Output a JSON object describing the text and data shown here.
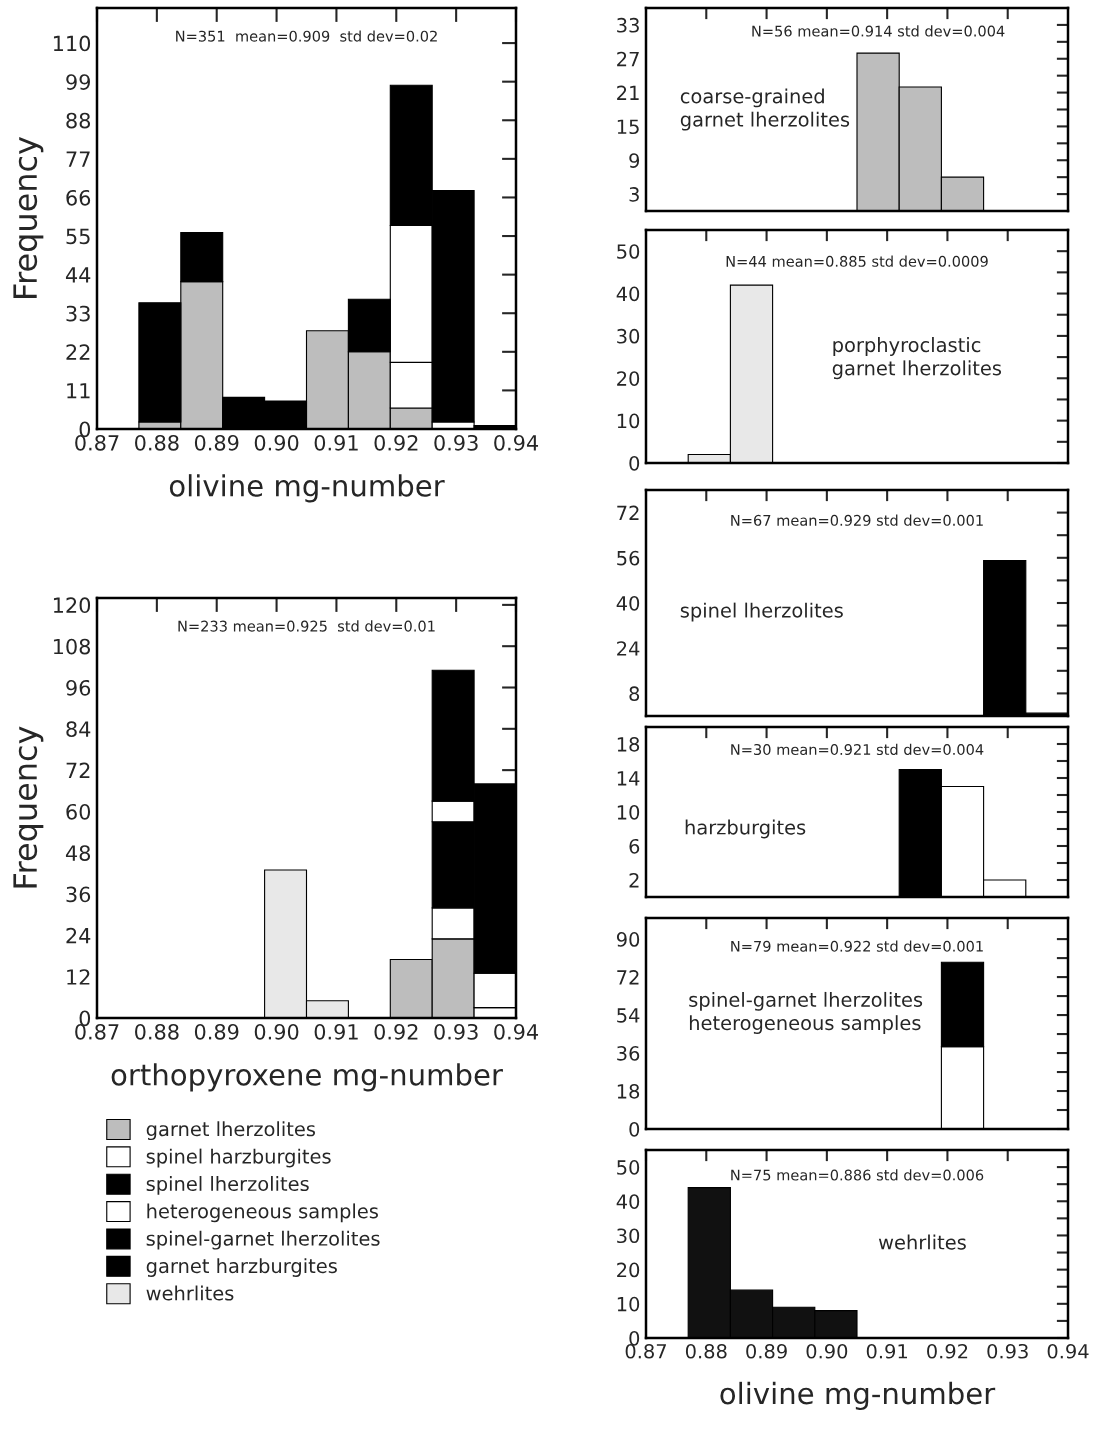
{
  "chart_data": [
    {
      "type": "bar",
      "xlabel": "olivine mg-number",
      "ylabel": "Frequency",
      "stacked": true,
      "x": [
        0.8805,
        0.8875,
        0.8945,
        0.9015,
        0.9085,
        0.9155,
        0.9225,
        0.9295,
        0.9365
      ],
      "series": [
        {
          "color": "#bdbdbd",
          "values": [
            2,
            42,
            null,
            null,
            28,
            22,
            6,
            null,
            null
          ]
        },
        {
          "color": "#ffffff",
          "values": [
            null,
            null,
            null,
            null,
            null,
            null,
            13,
            2,
            null
          ]
        },
        {
          "color": "#ffffff",
          "values": [
            null,
            null,
            null,
            null,
            null,
            null,
            39,
            null,
            null
          ]
        },
        {
          "color": "#000000",
          "values": [
            null,
            null,
            null,
            null,
            null,
            null,
            null,
            66,
            1
          ]
        },
        {
          "color": "#000000",
          "values": [
            null,
            null,
            null,
            null,
            null,
            15,
            null,
            null,
            null
          ]
        },
        {
          "color": "#000000",
          "values": [
            null,
            null,
            null,
            null,
            null,
            null,
            40,
            null,
            null
          ]
        },
        {
          "color": "#000000",
          "values": [
            34,
            14,
            9,
            8,
            null,
            null,
            null,
            null,
            null
          ]
        }
      ],
      "xlim": [
        0.87,
        0.94
      ],
      "xticks": [
        0.87,
        0.88,
        0.89,
        {
          "value": 0.9,
          "label": "0.90"
        },
        0.91,
        0.92,
        0.93,
        0.94
      ],
      "ylim": [
        0,
        120
      ],
      "yticks": [
        0,
        11,
        22,
        33,
        44,
        55,
        66,
        77,
        88,
        99,
        110
      ],
      "annotations": [
        "N=351  mean=0.909  std dev=0.02"
      ]
    },
    {
      "type": "bar",
      "xlabel": "orthopyroxene mg-number",
      "ylabel": "Frequency",
      "stacked": true,
      "legend": "bottom",
      "x": [
        0.9015,
        0.9085,
        0.9225,
        0.9295,
        0.9365
      ],
      "series": [
        {
          "name": "garnet lherzolites",
          "color": "#bdbdbd",
          "values": [
            null,
            null,
            17,
            23,
            null
          ]
        },
        {
          "name": "spinel harzburgites",
          "color": "#ffffff",
          "values": [
            null,
            null,
            null,
            9,
            3
          ]
        },
        {
          "name": "spinel lherzolites",
          "color": "#000000",
          "values": [
            null,
            null,
            null,
            25,
            null
          ]
        },
        {
          "name": "heterogeneous samples",
          "color": "#ffffff",
          "values": [
            null,
            null,
            null,
            6,
            10
          ]
        },
        {
          "name": "spinel-garnet lherzolites",
          "color": "#000000",
          "values": [
            null,
            null,
            null,
            38,
            55
          ]
        },
        {
          "name": "garnet harzburgites",
          "color": "#000000",
          "values": [
            null,
            null,
            null,
            null,
            null
          ]
        },
        {
          "name": "wehrlites",
          "color": "#e8e8e8",
          "values": [
            43,
            5,
            null,
            null,
            null
          ]
        }
      ],
      "xlim": [
        0.87,
        0.94
      ],
      "xticks": [
        0.87,
        0.88,
        0.89,
        {
          "value": 0.9,
          "label": "0.90"
        },
        0.91,
        0.92,
        0.93,
        0.94
      ],
      "ylim": [
        0,
        122
      ],
      "yticks": [
        0,
        12,
        24,
        36,
        48,
        60,
        72,
        84,
        96,
        108,
        120
      ],
      "annotations": [
        "N=233 mean=0.925  std dev=0.01"
      ]
    },
    {
      "type": "histogram",
      "tick_labels": "y",
      "bins": [
        0.877,
        0.884,
        0.891,
        0.898,
        0.905,
        0.912,
        0.919,
        0.926,
        0.933,
        0.94
      ],
      "values": [
        null,
        null,
        null,
        null,
        28,
        22,
        6,
        null,
        null
      ],
      "color": "#bdbdbd",
      "xlim": [
        0.87,
        0.94
      ],
      "xticks": [
        {
          "value": 0.88,
          "label": null
        },
        {
          "value": 0.89,
          "label": null
        },
        {
          "value": 0.9,
          "label": null
        },
        {
          "value": 0.91,
          "label": null
        },
        {
          "value": 0.92,
          "label": null
        },
        {
          "value": 0.93,
          "label": null
        }
      ],
      "ylim": [
        0,
        36
      ],
      "yticks": [
        3,
        {
          "value": 6,
          "label": null
        },
        9,
        {
          "value": 12,
          "label": null
        },
        15,
        {
          "value": 18,
          "label": null
        },
        21,
        {
          "value": 24,
          "label": null
        },
        27,
        {
          "value": 30,
          "label": null
        },
        33
      ],
      "annotations": [
        "N=56 mean=0.914 std dev=0.004",
        "coarse-grained\ngarnet lherzolites"
      ]
    },
    {
      "type": "histogram",
      "tick_labels": "y",
      "bins": [
        0.877,
        0.884,
        0.891,
        0.898,
        0.905,
        0.912,
        0.919,
        0.926,
        0.933,
        0.94
      ],
      "values": [
        2,
        42,
        null,
        null,
        null,
        null,
        null,
        null,
        null
      ],
      "color": "#e8e8e8",
      "xlim": [
        0.87,
        0.94
      ],
      "xticks": [
        {
          "value": 0.88,
          "label": null
        },
        {
          "value": 0.89,
          "label": null
        },
        {
          "value": 0.9,
          "label": null
        },
        {
          "value": 0.91,
          "label": null
        },
        {
          "value": 0.92,
          "label": null
        },
        {
          "value": 0.93,
          "label": null
        }
      ],
      "ylim": [
        0,
        55
      ],
      "yticks": [
        0,
        {
          "value": 5,
          "label": null
        },
        10,
        {
          "value": 15,
          "label": null
        },
        20,
        {
          "value": 25,
          "label": null
        },
        30,
        {
          "value": 35,
          "label": null
        },
        40,
        {
          "value": 45,
          "label": null
        },
        50
      ],
      "annotations": [
        "N=44 mean=0.885 std dev=0.0009",
        "porphyroclastic\ngarnet lherzolites"
      ]
    },
    {
      "type": "histogram",
      "tick_labels": "y",
      "bins": [
        0.877,
        0.884,
        0.891,
        0.898,
        0.905,
        0.912,
        0.919,
        0.926,
        0.933,
        0.94
      ],
      "values": [
        null,
        null,
        null,
        null,
        null,
        null,
        null,
        55,
        1
      ],
      "color": "#000000",
      "xlim": [
        0.87,
        0.94
      ],
      "xticks": [
        {
          "value": 0.88,
          "label": null
        },
        {
          "value": 0.89,
          "label": null
        },
        {
          "value": 0.9,
          "label": null
        },
        {
          "value": 0.91,
          "label": null
        },
        {
          "value": 0.92,
          "label": null
        },
        {
          "value": 0.93,
          "label": null
        }
      ],
      "ylim": [
        0,
        80
      ],
      "yticks": [
        8,
        {
          "value": 16,
          "label": null
        },
        24,
        {
          "value": 32,
          "label": null
        },
        40,
        {
          "value": 48,
          "label": null
        },
        56,
        {
          "value": 64,
          "label": null
        },
        72
      ],
      "annotations": [
        "N=67 mean=0.929 std dev=0.001",
        "spinel lherzolites"
      ]
    },
    {
      "type": "histogram",
      "tick_labels": "y",
      "bins": [
        0.877,
        0.884,
        0.891,
        0.898,
        0.905,
        0.912,
        0.919,
        0.926,
        0.933,
        0.94
      ],
      "values": [
        null,
        null,
        null,
        null,
        null,
        15,
        13,
        2,
        null
      ],
      "colors": [
        "#000000",
        "#000000",
        "#000000",
        "#000000",
        "#000000",
        "#000000",
        "#ffffff",
        "#ffffff",
        "#ffffff"
      ],
      "xlim": [
        0.87,
        0.94
      ],
      "xticks": [
        {
          "value": 0.88,
          "label": null
        },
        {
          "value": 0.89,
          "label": null
        },
        {
          "value": 0.9,
          "label": null
        },
        {
          "value": 0.91,
          "label": null
        },
        {
          "value": 0.92,
          "label": null
        },
        {
          "value": 0.93,
          "label": null
        }
      ],
      "ylim": [
        0,
        20
      ],
      "yticks": [
        2,
        {
          "value": 4,
          "label": null
        },
        6,
        {
          "value": 8,
          "label": null
        },
        10,
        {
          "value": 12,
          "label": null
        },
        14,
        {
          "value": 16,
          "label": null
        },
        18
      ],
      "annotations": [
        "N=30 mean=0.921 std dev=0.004",
        "harzburgites"
      ]
    },
    {
      "type": "bar",
      "tick_labels": "y",
      "stacked": true,
      "x": [
        0.9225
      ],
      "series": [
        {
          "color": "#ffffff",
          "values": [
            39
          ]
        },
        {
          "color": "#000000",
          "values": [
            40
          ]
        }
      ],
      "xlim": [
        0.87,
        0.94
      ],
      "xticks": [
        {
          "value": 0.88,
          "label": null
        },
        {
          "value": 0.89,
          "label": null
        },
        {
          "value": 0.9,
          "label": null
        },
        {
          "value": 0.91,
          "label": null
        },
        {
          "value": 0.92,
          "label": null
        },
        {
          "value": 0.93,
          "label": null
        }
      ],
      "ylim": [
        0,
        100
      ],
      "yticks": [
        0,
        {
          "value": 9,
          "label": null
        },
        18,
        {
          "value": 27,
          "label": null
        },
        36,
        {
          "value": 45,
          "label": null
        },
        54,
        {
          "value": 63,
          "label": null
        },
        72,
        {
          "value": 81,
          "label": null
        },
        90
      ],
      "annotations": [
        "N=79 mean=0.922 std dev=0.001",
        "spinel-garnet lherzolites\nheterogeneous samples"
      ]
    },
    {
      "type": "histogram",
      "xlabel": "olivine mg-number",
      "bins": [
        0.877,
        0.884,
        0.891,
        0.898,
        0.905,
        0.912,
        0.919,
        0.926,
        0.933,
        0.94
      ],
      "values": [
        44,
        14,
        9,
        8,
        null,
        null,
        null,
        null,
        null
      ],
      "color": "#111111",
      "xlim": [
        0.87,
        0.94
      ],
      "xticks": [
        0.87,
        0.88,
        0.89,
        {
          "value": 0.9,
          "label": "0.90"
        },
        0.91,
        0.92,
        0.93,
        0.94
      ],
      "ylim": [
        0,
        55
      ],
      "yticks": [
        0,
        {
          "value": 5,
          "label": null
        },
        10,
        {
          "value": 15,
          "label": null
        },
        20,
        {
          "value": 25,
          "label": null
        },
        30,
        {
          "value": 35,
          "label": null
        },
        40,
        {
          "value": 45,
          "label": null
        },
        50
      ],
      "annotations": [
        "N=75 mean=0.886 std dev=0.006",
        "wehrlites"
      ]
    }
  ]
}
